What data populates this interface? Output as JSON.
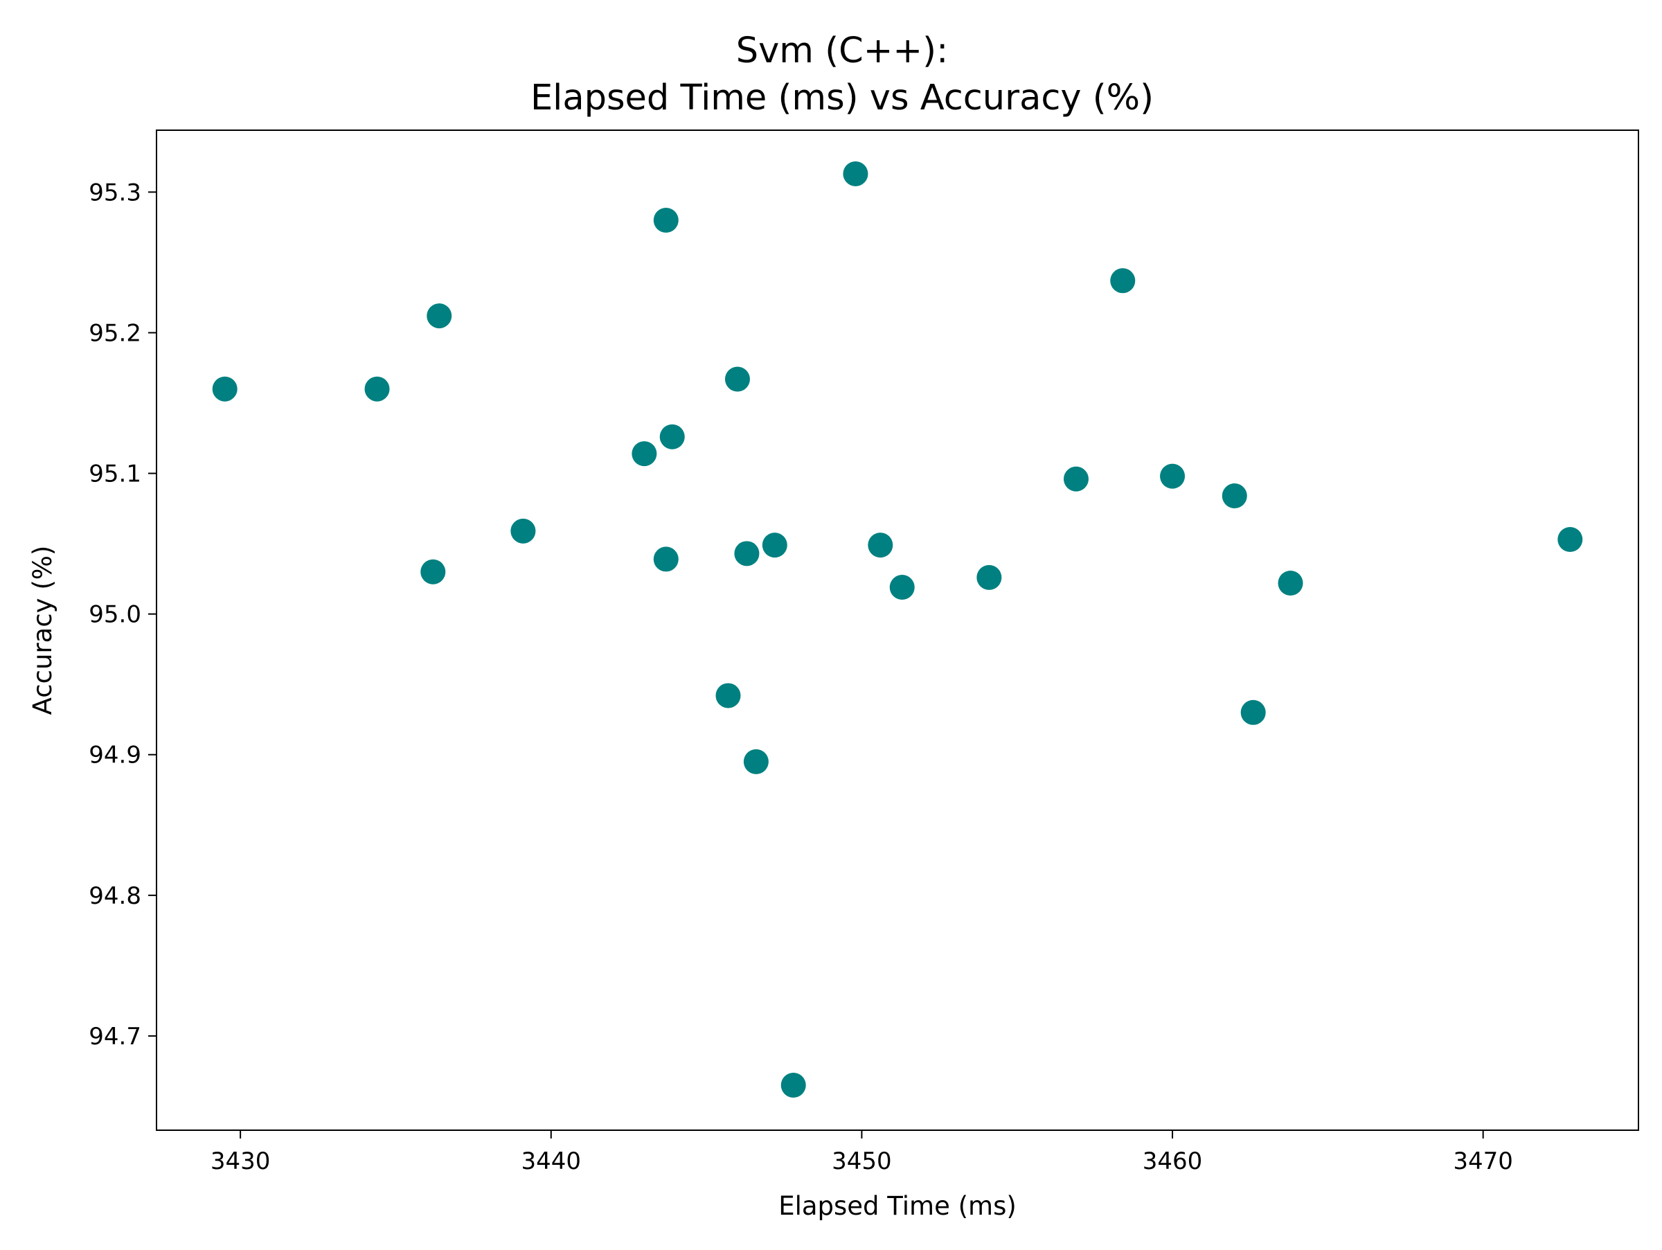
{
  "chart_data": {
    "type": "scatter",
    "title_line1": "Svm (C++):",
    "title_line2": "Elapsed Time (ms) vs Accuracy (%)",
    "xlabel": "Elapsed Time (ms)",
    "ylabel": "Accuracy (%)",
    "xlim": [
      3427.3,
      3475.0
    ],
    "ylim": [
      94.633,
      95.344
    ],
    "xticks": [
      3430,
      3440,
      3450,
      3460,
      3470
    ],
    "yticks": [
      94.7,
      94.8,
      94.9,
      95.0,
      95.1,
      95.2,
      95.3
    ],
    "ytick_labels": [
      "94.7",
      "94.8",
      "94.9",
      "95.0",
      "95.1",
      "95.2",
      "95.3"
    ],
    "grid": false,
    "marker_color": "#008080",
    "points": [
      {
        "x": 3429.5,
        "y": 95.16
      },
      {
        "x": 3434.4,
        "y": 95.16
      },
      {
        "x": 3436.4,
        "y": 95.212
      },
      {
        "x": 3436.2,
        "y": 95.03
      },
      {
        "x": 3439.1,
        "y": 95.059
      },
      {
        "x": 3443.0,
        "y": 95.114
      },
      {
        "x": 3443.7,
        "y": 95.28
      },
      {
        "x": 3443.9,
        "y": 95.126
      },
      {
        "x": 3443.7,
        "y": 95.039
      },
      {
        "x": 3445.7,
        "y": 94.942
      },
      {
        "x": 3446.0,
        "y": 95.167
      },
      {
        "x": 3446.3,
        "y": 95.043
      },
      {
        "x": 3446.6,
        "y": 94.895
      },
      {
        "x": 3447.2,
        "y": 95.049
      },
      {
        "x": 3447.8,
        "y": 94.665
      },
      {
        "x": 3449.8,
        "y": 95.313
      },
      {
        "x": 3450.6,
        "y": 95.049
      },
      {
        "x": 3451.3,
        "y": 95.019
      },
      {
        "x": 3454.1,
        "y": 95.026
      },
      {
        "x": 3456.9,
        "y": 95.096
      },
      {
        "x": 3458.4,
        "y": 95.237
      },
      {
        "x": 3460.0,
        "y": 95.098
      },
      {
        "x": 3462.0,
        "y": 95.084
      },
      {
        "x": 3462.6,
        "y": 94.93
      },
      {
        "x": 3463.8,
        "y": 95.022
      },
      {
        "x": 3472.8,
        "y": 95.053
      }
    ]
  }
}
